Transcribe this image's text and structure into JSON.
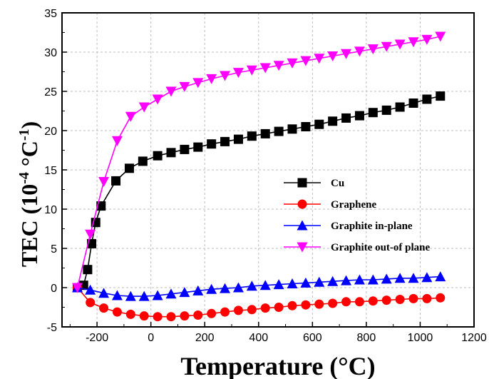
{
  "chart_data": {
    "type": "line",
    "title": "",
    "xlabel": "Temperature (°C)",
    "ylabel_main": "TEC (10",
    "ylabel_exp1": "-4",
    "ylabel_mid": " °C",
    "ylabel_exp2": "-1",
    "ylabel_end": ")",
    "xlim": [
      -330,
      1200
    ],
    "ylim": [
      -5,
      35
    ],
    "xticks": [
      -200,
      0,
      200,
      400,
      600,
      800,
      1000,
      1200
    ],
    "yticks": [
      -5,
      0,
      5,
      10,
      15,
      20,
      25,
      30,
      35
    ],
    "grid": true,
    "legend_position": "center-right",
    "series": [
      {
        "name": "Cu",
        "color": "#000000",
        "marker": "square",
        "x": [
          -273,
          -250,
          -235,
          -220,
          -205,
          -185,
          -130,
          -80,
          -30,
          25,
          75,
          125,
          175,
          225,
          275,
          325,
          375,
          425,
          475,
          525,
          575,
          625,
          675,
          725,
          775,
          825,
          875,
          925,
          975,
          1025,
          1075
        ],
        "y": [
          0,
          0.3,
          2.3,
          5.6,
          8.3,
          10.4,
          13.6,
          15.2,
          16.1,
          16.8,
          17.2,
          17.6,
          17.9,
          18.3,
          18.6,
          18.9,
          19.3,
          19.6,
          19.9,
          20.2,
          20.5,
          20.8,
          21.2,
          21.6,
          21.9,
          22.3,
          22.6,
          23.0,
          23.5,
          24.0,
          24.4
        ]
      },
      {
        "name": "Graphene",
        "color": "#ff0000",
        "marker": "circle",
        "x": [
          -273,
          -225,
          -175,
          -125,
          -75,
          -25,
          25,
          75,
          125,
          175,
          225,
          275,
          325,
          375,
          425,
          475,
          525,
          575,
          625,
          675,
          725,
          775,
          825,
          875,
          925,
          975,
          1025,
          1075
        ],
        "y": [
          0,
          -1.9,
          -2.6,
          -3.1,
          -3.4,
          -3.6,
          -3.7,
          -3.7,
          -3.6,
          -3.5,
          -3.3,
          -3.1,
          -2.9,
          -2.8,
          -2.6,
          -2.5,
          -2.3,
          -2.2,
          -2.1,
          -2.0,
          -1.8,
          -1.8,
          -1.7,
          -1.6,
          -1.5,
          -1.4,
          -1.4,
          -1.3
        ]
      },
      {
        "name": "Graphite in-plane",
        "color": "#0000ff",
        "marker": "triangle-up",
        "x": [
          -273,
          -225,
          -175,
          -125,
          -75,
          -25,
          25,
          75,
          125,
          175,
          225,
          275,
          325,
          375,
          425,
          475,
          525,
          575,
          625,
          675,
          725,
          775,
          825,
          875,
          925,
          975,
          1025,
          1075
        ],
        "y": [
          0,
          -0.3,
          -0.7,
          -1.0,
          -1.1,
          -1.1,
          -1.0,
          -0.8,
          -0.6,
          -0.4,
          -0.2,
          -0.1,
          0.0,
          0.2,
          0.3,
          0.4,
          0.5,
          0.6,
          0.7,
          0.8,
          0.9,
          1.0,
          1.0,
          1.1,
          1.2,
          1.2,
          1.3,
          1.4
        ]
      },
      {
        "name": "Graphite out-of plane",
        "color": "#ff00ff",
        "marker": "triangle-down",
        "x": [
          -273,
          -225,
          -175,
          -125,
          -75,
          -25,
          25,
          75,
          125,
          175,
          225,
          275,
          325,
          375,
          425,
          475,
          525,
          575,
          625,
          675,
          725,
          775,
          825,
          875,
          925,
          975,
          1025,
          1075
        ],
        "y": [
          0,
          6.8,
          13.5,
          18.7,
          21.8,
          23.0,
          24.0,
          25.0,
          25.6,
          26.1,
          26.6,
          27.0,
          27.4,
          27.7,
          28.0,
          28.3,
          28.6,
          28.9,
          29.2,
          29.5,
          29.8,
          30.1,
          30.4,
          30.7,
          31.0,
          31.3,
          31.6,
          32.0
        ]
      }
    ]
  }
}
